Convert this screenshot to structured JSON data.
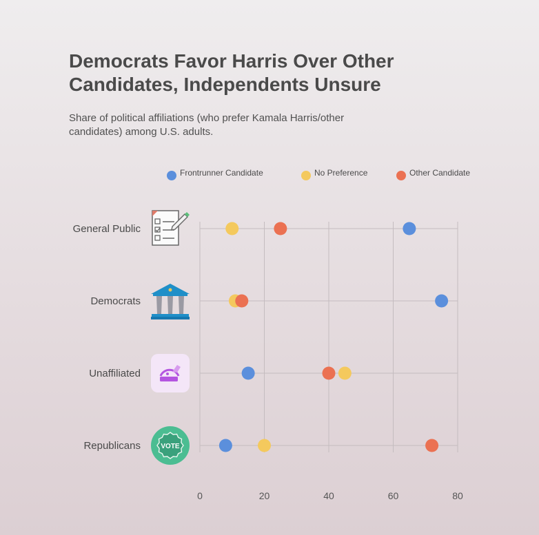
{
  "title": "Democrats Favor Harris Over Other Candidates, Independents Unsure",
  "subtitle": "Share of political affiliations (who prefer Kamala Harris/other candidates) among U.S. adults.",
  "icons": {
    "General Public": "checklist-clipboard-icon",
    "Democrats": "government-building-icon",
    "Unaffiliated": "ballot-box-icon",
    "Republicans": "vote-badge-icon"
  },
  "chart_data": {
    "type": "scatter",
    "categories": [
      "General Public",
      "Democrats",
      "Unaffiliated",
      "Republicans"
    ],
    "series": [
      {
        "name": "Frontrunner Candidate",
        "color": "#5b8fdc",
        "values": [
          65,
          75,
          15,
          8
        ]
      },
      {
        "name": "No Preference",
        "color": "#f4c95d",
        "values": [
          10,
          11,
          45,
          20
        ]
      },
      {
        "name": "Other Candidate",
        "color": "#eb7152",
        "values": [
          25,
          13,
          40,
          72
        ]
      }
    ],
    "xlim": [
      0,
      80
    ],
    "xticks": [
      0,
      20,
      40,
      60,
      80
    ],
    "grid": true,
    "legend": "top"
  }
}
